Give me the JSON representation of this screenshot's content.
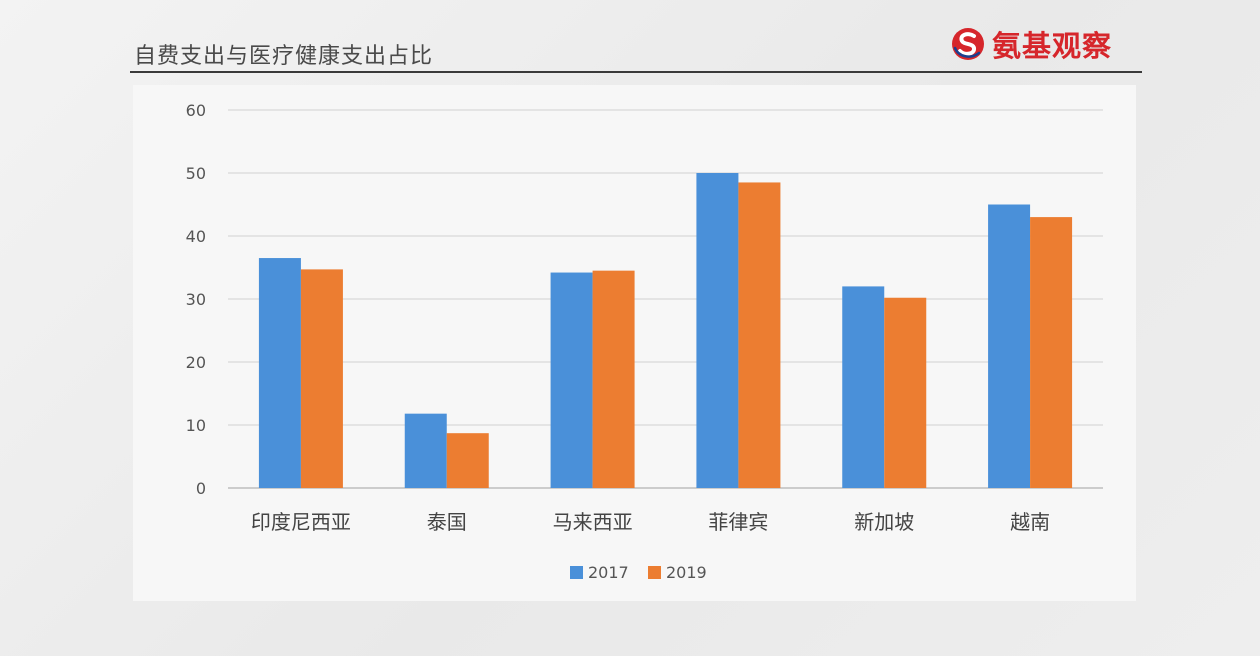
{
  "header": {
    "title": "自费支出与医疗健康支出占比",
    "brand_name": "氨基观察",
    "brand_color": "#d6262b",
    "brand_logo_icon": "brand-s-logo"
  },
  "chart_data": {
    "type": "bar",
    "categories": [
      "印度尼西亚",
      "泰国",
      "马来西亚",
      "菲律宾",
      "新加坡",
      "越南"
    ],
    "series": [
      {
        "name": "2017",
        "color": "#4a90d9",
        "values": [
          36.5,
          11.8,
          34.2,
          50,
          32,
          45
        ]
      },
      {
        "name": "2019",
        "color": "#ec7d31",
        "values": [
          34.7,
          8.7,
          34.5,
          48.5,
          30.2,
          43
        ]
      }
    ],
    "ylim": [
      0,
      60
    ],
    "yticks": [
      0,
      10,
      20,
      30,
      40,
      50,
      60
    ],
    "grid": true,
    "legend": "bottom-center",
    "title": "",
    "xlabel": "",
    "ylabel": ""
  }
}
